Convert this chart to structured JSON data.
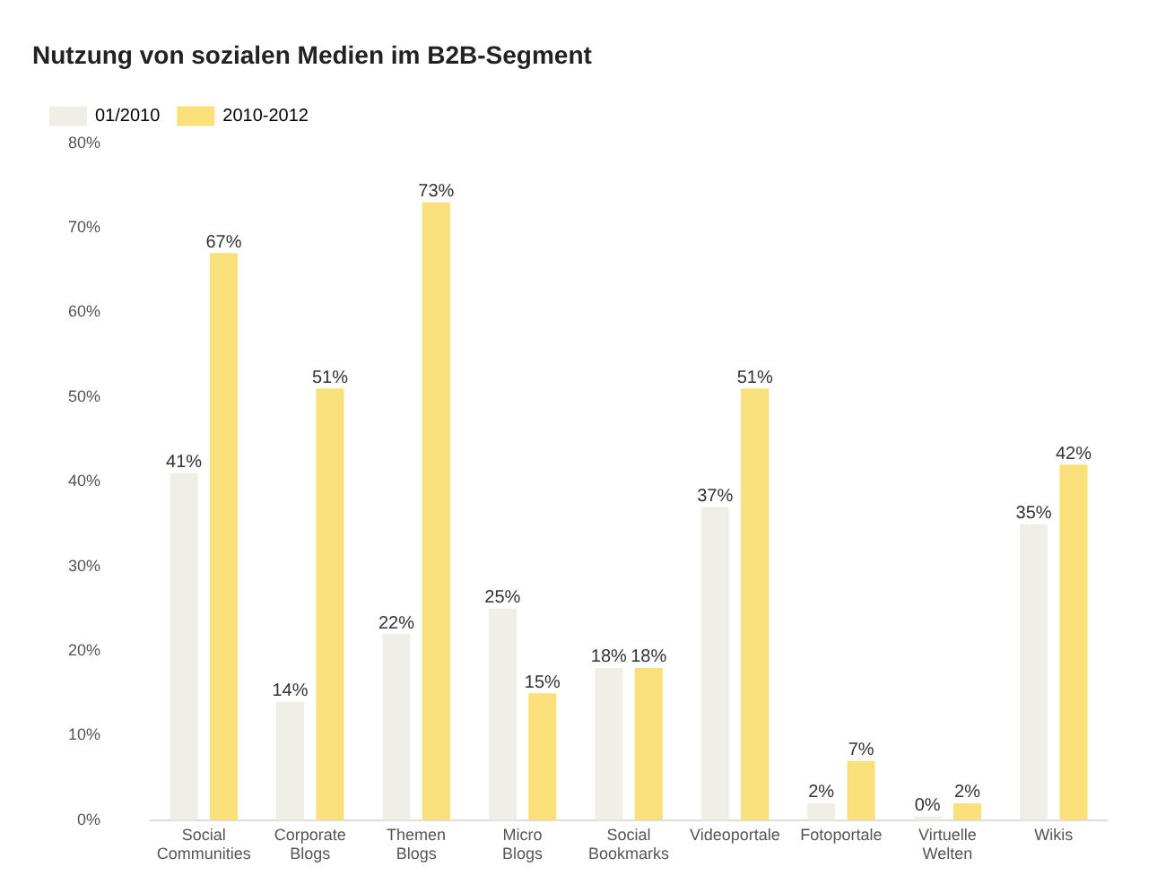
{
  "chart_data": {
    "type": "bar",
    "title": "Nutzung von sozialen Medien im B2B-Segment",
    "categories": [
      "Social Communities",
      "Corporate Blogs",
      "Themen Blogs",
      "Micro Blogs",
      "Social Bookmarks",
      "Videoportale",
      "Fotoportale",
      "Virtuelle Welten",
      "Wikis"
    ],
    "series": [
      {
        "name": "01/2010",
        "color": "#efefe8",
        "values": [
          41,
          14,
          22,
          25,
          18,
          37,
          2,
          0,
          35
        ],
        "value_labels": [
          "41%",
          "14%",
          "22%",
          "25%",
          "18%",
          "37%",
          "2%",
          "0%",
          "35%"
        ]
      },
      {
        "name": "2010-2012",
        "color": "#f9e07a",
        "values": [
          67,
          51,
          73,
          15,
          18,
          51,
          7,
          2,
          42
        ],
        "value_labels": [
          "67%",
          "51%",
          "73%",
          "15%",
          "18%",
          "51%",
          "7%",
          "2%",
          "42%"
        ]
      }
    ],
    "ylim": [
      0,
      80
    ],
    "yticks": [
      {
        "value": 0,
        "label": "0%"
      },
      {
        "value": 10,
        "label": "10%"
      },
      {
        "value": 20,
        "label": "20%"
      },
      {
        "value": 30,
        "label": "30%"
      },
      {
        "value": 40,
        "label": "40%"
      },
      {
        "value": 50,
        "label": "50%"
      },
      {
        "value": 60,
        "label": "60%"
      },
      {
        "value": 70,
        "label": "70%"
      },
      {
        "value": 80,
        "label": "80%"
      }
    ],
    "grid": false,
    "legend": "top left"
  }
}
